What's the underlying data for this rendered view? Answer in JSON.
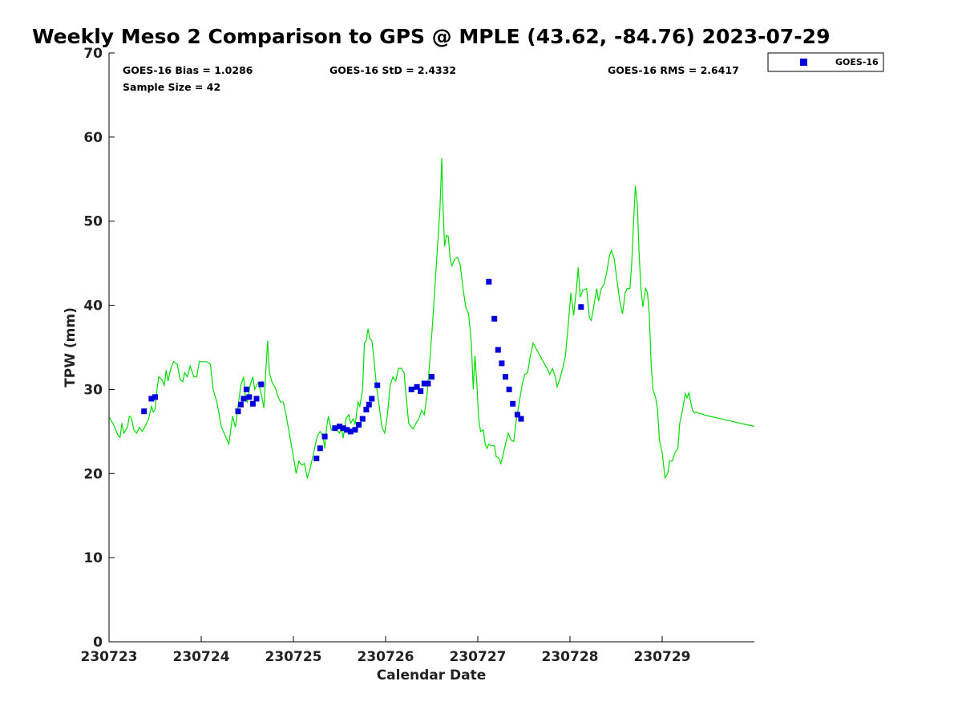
{
  "chart_data": {
    "type": "scatter",
    "title": "Weekly Meso 2 Comparison to GPS @ MPLE (43.62, -84.76) 2023-07-29",
    "xlabel": "Calendar Date",
    "ylabel": "TPW (mm)",
    "xlim": [
      0,
      7
    ],
    "ylim": [
      0,
      70
    ],
    "x_ticks": [
      0,
      1,
      2,
      3,
      4,
      5,
      6
    ],
    "x_tick_labels": [
      "230723",
      "230724",
      "230725",
      "230726",
      "230727",
      "230728",
      "230729"
    ],
    "y_ticks": [
      0,
      10,
      20,
      30,
      40,
      50,
      60,
      70
    ],
    "y_tick_labels": [
      "0",
      "10",
      "20",
      "30",
      "40",
      "50",
      "60",
      "70"
    ],
    "grid": false,
    "legend": {
      "position": "top-right",
      "entries": [
        "GOES-16"
      ]
    },
    "stats": {
      "bias": "GOES-16 Bias = 1.0286",
      "std": "GOES-16 StD = 2.4332",
      "rms": "GOES-16 RMS = 2.6417",
      "sample": "Sample Size = 42"
    },
    "series": [
      {
        "name": "GPS",
        "kind": "line",
        "color": "#00dd00",
        "points": [
          [
            0.0,
            26.7
          ],
          [
            0.05,
            25.8
          ],
          [
            0.1,
            24.5
          ],
          [
            0.12,
            24.3
          ],
          [
            0.14,
            26.0
          ],
          [
            0.16,
            24.8
          ],
          [
            0.2,
            25.5
          ],
          [
            0.22,
            26.8
          ],
          [
            0.24,
            26.7
          ],
          [
            0.27,
            25.2
          ],
          [
            0.3,
            24.8
          ],
          [
            0.33,
            25.5
          ],
          [
            0.36,
            25.0
          ],
          [
            0.4,
            25.8
          ],
          [
            0.43,
            26.5
          ],
          [
            0.46,
            28.0
          ],
          [
            0.48,
            27.3
          ],
          [
            0.5,
            27.6
          ],
          [
            0.52,
            30.0
          ],
          [
            0.54,
            31.5
          ],
          [
            0.57,
            31.2
          ],
          [
            0.6,
            30.5
          ],
          [
            0.62,
            32.3
          ],
          [
            0.64,
            31.0
          ],
          [
            0.67,
            32.5
          ],
          [
            0.7,
            33.3
          ],
          [
            0.74,
            33.0
          ],
          [
            0.77,
            31.2
          ],
          [
            0.8,
            30.9
          ],
          [
            0.82,
            32.0
          ],
          [
            0.85,
            31.5
          ],
          [
            0.88,
            32.8
          ],
          [
            0.92,
            31.5
          ],
          [
            0.95,
            31.5
          ],
          [
            0.98,
            33.3
          ],
          [
            1.02,
            33.3
          ],
          [
            1.06,
            33.3
          ],
          [
            1.1,
            33.0
          ],
          [
            1.13,
            30.0
          ],
          [
            1.17,
            28.5
          ],
          [
            1.22,
            25.5
          ],
          [
            1.26,
            24.5
          ],
          [
            1.3,
            23.5
          ],
          [
            1.34,
            26.8
          ],
          [
            1.37,
            25.5
          ],
          [
            1.4,
            28.0
          ],
          [
            1.43,
            30.5
          ],
          [
            1.46,
            31.5
          ],
          [
            1.48,
            29.0
          ],
          [
            1.5,
            28.5
          ],
          [
            1.53,
            30.5
          ],
          [
            1.56,
            31.5
          ],
          [
            1.58,
            30.0
          ],
          [
            1.6,
            30.5
          ],
          [
            1.62,
            30.8
          ],
          [
            1.65,
            29.5
          ],
          [
            1.68,
            27.8
          ],
          [
            1.7,
            32.0
          ],
          [
            1.72,
            35.8
          ],
          [
            1.74,
            32.0
          ],
          [
            1.77,
            30.8
          ],
          [
            1.8,
            30.3
          ],
          [
            1.83,
            29.2
          ],
          [
            1.86,
            28.5
          ],
          [
            1.89,
            28.5
          ],
          [
            1.92,
            27.0
          ],
          [
            1.96,
            24.5
          ],
          [
            2.0,
            22.0
          ],
          [
            2.03,
            20.0
          ],
          [
            2.06,
            21.5
          ],
          [
            2.09,
            21.0
          ],
          [
            2.12,
            21.2
          ],
          [
            2.15,
            19.5
          ],
          [
            2.18,
            20.5
          ],
          [
            2.22,
            22.5
          ],
          [
            2.26,
            24.5
          ],
          [
            2.29,
            25.0
          ],
          [
            2.32,
            24.5
          ],
          [
            2.34,
            23.0
          ],
          [
            2.36,
            25.5
          ],
          [
            2.38,
            26.8
          ],
          [
            2.41,
            25.2
          ],
          [
            2.44,
            25.3
          ],
          [
            2.47,
            25.2
          ],
          [
            2.5,
            24.8
          ],
          [
            2.52,
            25.5
          ],
          [
            2.54,
            24.2
          ],
          [
            2.57,
            26.5
          ],
          [
            2.6,
            27.0
          ],
          [
            2.62,
            26.0
          ],
          [
            2.65,
            26.5
          ],
          [
            2.67,
            25.8
          ],
          [
            2.7,
            28.5
          ],
          [
            2.72,
            28.0
          ],
          [
            2.75,
            30.0
          ],
          [
            2.77,
            35.5
          ],
          [
            2.79,
            35.8
          ],
          [
            2.81,
            37.2
          ],
          [
            2.83,
            36.0
          ],
          [
            2.85,
            35.8
          ],
          [
            2.87,
            34.0
          ],
          [
            2.9,
            30.5
          ],
          [
            2.93,
            28.0
          ],
          [
            2.96,
            25.5
          ],
          [
            2.99,
            24.8
          ],
          [
            3.02,
            27.0
          ],
          [
            3.05,
            30.5
          ],
          [
            3.08,
            31.5
          ],
          [
            3.11,
            31.0
          ],
          [
            3.14,
            32.5
          ],
          [
            3.17,
            32.5
          ],
          [
            3.2,
            32.0
          ],
          [
            3.22,
            29.5
          ],
          [
            3.25,
            26.0
          ],
          [
            3.28,
            25.5
          ],
          [
            3.3,
            25.3
          ],
          [
            3.33,
            26.0
          ],
          [
            3.36,
            26.5
          ],
          [
            3.39,
            27.5
          ],
          [
            3.42,
            27.0
          ],
          [
            3.45,
            29.5
          ],
          [
            3.48,
            33.5
          ],
          [
            3.51,
            38.0
          ],
          [
            3.54,
            43.0
          ],
          [
            3.57,
            48.0
          ],
          [
            3.59,
            51.5
          ],
          [
            3.61,
            57.5
          ],
          [
            3.62,
            52.5
          ],
          [
            3.64,
            47.0
          ],
          [
            3.66,
            48.3
          ],
          [
            3.68,
            48.2
          ],
          [
            3.7,
            45.5
          ],
          [
            3.72,
            44.7
          ],
          [
            3.75,
            45.5
          ],
          [
            3.78,
            45.7
          ],
          [
            3.81,
            44.8
          ],
          [
            3.84,
            42.0
          ],
          [
            3.87,
            39.8
          ],
          [
            3.9,
            39.0
          ],
          [
            3.93,
            35.5
          ],
          [
            3.95,
            30.0
          ],
          [
            3.97,
            34.0
          ],
          [
            3.99,
            30.5
          ],
          [
            4.01,
            26.5
          ],
          [
            4.03,
            25.0
          ],
          [
            4.06,
            25.2
          ],
          [
            4.08,
            23.5
          ],
          [
            4.1,
            23.0
          ],
          [
            4.12,
            23.5
          ],
          [
            4.15,
            23.3
          ],
          [
            4.18,
            23.3
          ],
          [
            4.2,
            22.0
          ],
          [
            4.23,
            21.8
          ],
          [
            4.25,
            21.2
          ],
          [
            4.27,
            22.0
          ],
          [
            4.3,
            23.5
          ],
          [
            4.33,
            24.8
          ],
          [
            4.36,
            24.0
          ],
          [
            4.39,
            23.8
          ],
          [
            4.42,
            26.5
          ],
          [
            4.45,
            28.5
          ],
          [
            4.48,
            30.5
          ],
          [
            4.51,
            31.8
          ],
          [
            4.54,
            32.0
          ],
          [
            4.57,
            34.0
          ],
          [
            4.6,
            35.5
          ],
          [
            4.65,
            34.5
          ],
          [
            4.7,
            33.5
          ],
          [
            4.75,
            32.5
          ],
          [
            4.78,
            31.8
          ],
          [
            4.81,
            32.5
          ],
          [
            4.84,
            31.5
          ],
          [
            4.86,
            30.3
          ],
          [
            4.89,
            31.2
          ],
          [
            4.92,
            32.5
          ],
          [
            4.95,
            34.0
          ],
          [
            4.98,
            37.5
          ],
          [
            5.01,
            41.5
          ],
          [
            5.04,
            38.8
          ],
          [
            5.07,
            42.0
          ],
          [
            5.09,
            44.5
          ],
          [
            5.11,
            41.0
          ],
          [
            5.14,
            41.8
          ],
          [
            5.18,
            42.0
          ],
          [
            5.21,
            38.5
          ],
          [
            5.23,
            38.2
          ],
          [
            5.26,
            40.0
          ],
          [
            5.29,
            42.0
          ],
          [
            5.31,
            40.5
          ],
          [
            5.34,
            42.0
          ],
          [
            5.37,
            42.5
          ],
          [
            5.4,
            44.0
          ],
          [
            5.43,
            46.0
          ],
          [
            5.45,
            46.5
          ],
          [
            5.48,
            45.5
          ],
          [
            5.51,
            43.0
          ],
          [
            5.54,
            40.5
          ],
          [
            5.57,
            39.0
          ],
          [
            5.6,
            41.5
          ],
          [
            5.62,
            42.0
          ],
          [
            5.65,
            42.0
          ],
          [
            5.67,
            45.0
          ],
          [
            5.69,
            50.0
          ],
          [
            5.71,
            54.2
          ],
          [
            5.73,
            52.0
          ],
          [
            5.75,
            46.0
          ],
          [
            5.77,
            42.0
          ],
          [
            5.79,
            39.8
          ],
          [
            5.82,
            42.0
          ],
          [
            5.84,
            41.5
          ],
          [
            5.86,
            39.0
          ],
          [
            5.88,
            33.0
          ],
          [
            5.9,
            30.0
          ],
          [
            5.93,
            29.0
          ],
          [
            5.95,
            27.5
          ],
          [
            5.97,
            24.0
          ],
          [
            6.0,
            22.5
          ],
          [
            6.03,
            19.5
          ],
          [
            6.06,
            20.0
          ],
          [
            6.08,
            21.5
          ],
          [
            6.11,
            21.5
          ],
          [
            6.14,
            22.5
          ],
          [
            6.17,
            23.0
          ],
          [
            6.19,
            26.0
          ],
          [
            6.22,
            27.5
          ],
          [
            6.25,
            29.5
          ],
          [
            6.27,
            29.0
          ],
          [
            6.29,
            29.6
          ],
          [
            6.31,
            28.5
          ],
          [
            6.33,
            27.5
          ],
          [
            6.35,
            27.2
          ],
          [
            6.37,
            27.3
          ],
          [
            6.39,
            27.2
          ],
          [
            6.42,
            27.1
          ],
          [
            6.45,
            27.0
          ],
          [
            6.48,
            26.9
          ],
          [
            6.52,
            26.8
          ],
          [
            6.56,
            26.7
          ],
          [
            6.6,
            26.6
          ],
          [
            6.64,
            26.5
          ],
          [
            6.68,
            26.4
          ],
          [
            6.72,
            26.3
          ],
          [
            6.76,
            26.2
          ],
          [
            6.8,
            26.1
          ],
          [
            6.84,
            26.0
          ],
          [
            6.88,
            25.9
          ],
          [
            6.92,
            25.8
          ],
          [
            6.96,
            25.7
          ],
          [
            7.0,
            25.6
          ]
        ]
      },
      {
        "name": "GOES-16",
        "kind": "scatter",
        "color": "#0000dd",
        "points": [
          [
            0.38,
            27.4
          ],
          [
            0.46,
            28.9
          ],
          [
            0.5,
            29.1
          ],
          [
            1.4,
            27.4
          ],
          [
            1.43,
            28.2
          ],
          [
            1.46,
            28.9
          ],
          [
            1.49,
            30.0
          ],
          [
            1.52,
            29.1
          ],
          [
            1.56,
            28.3
          ],
          [
            1.6,
            28.9
          ],
          [
            1.65,
            30.6
          ],
          [
            2.25,
            21.8
          ],
          [
            2.29,
            23.0
          ],
          [
            2.34,
            24.4
          ],
          [
            2.45,
            25.4
          ],
          [
            2.5,
            25.6
          ],
          [
            2.54,
            25.4
          ],
          [
            2.58,
            25.2
          ],
          [
            2.62,
            25.0
          ],
          [
            2.67,
            25.2
          ],
          [
            2.71,
            25.8
          ],
          [
            2.75,
            26.5
          ],
          [
            2.79,
            27.6
          ],
          [
            2.82,
            28.2
          ],
          [
            2.85,
            28.9
          ],
          [
            2.91,
            30.5
          ],
          [
            3.28,
            30.0
          ],
          [
            3.34,
            30.3
          ],
          [
            3.38,
            29.8
          ],
          [
            3.42,
            30.7
          ],
          [
            3.46,
            30.7
          ],
          [
            3.5,
            31.5
          ],
          [
            4.12,
            42.8
          ],
          [
            4.18,
            38.4
          ],
          [
            4.22,
            34.7
          ],
          [
            4.26,
            33.1
          ],
          [
            4.3,
            31.5
          ],
          [
            4.34,
            30.0
          ],
          [
            4.38,
            28.3
          ],
          [
            4.43,
            27.0
          ],
          [
            4.47,
            26.5
          ],
          [
            5.12,
            39.8
          ]
        ]
      }
    ]
  }
}
